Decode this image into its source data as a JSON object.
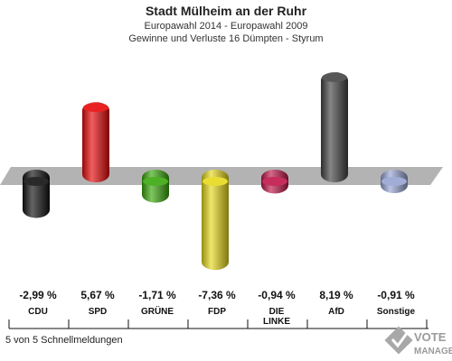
{
  "chart_data": {
    "type": "bar",
    "title": "Stadt Mülheim an der Ruhr",
    "subtitle_1": "Europawahl 2014 - Europawahl 2009",
    "subtitle_2": "Gewinne und Verluste 16 Dümpten - Styrum",
    "categories": [
      "CDU",
      "SPD",
      "GRÜNE",
      "FDP",
      "DIE LINKE",
      "AfD",
      "Sonstige"
    ],
    "category_lines": [
      [
        "CDU"
      ],
      [
        "SPD"
      ],
      [
        "GRÜNE"
      ],
      [
        "FDP"
      ],
      [
        "DIE",
        "LINKE"
      ],
      [
        "AfD"
      ],
      [
        "Sonstige"
      ]
    ],
    "values": [
      -2.99,
      5.67,
      -1.71,
      -7.36,
      -0.94,
      8.19,
      -0.91
    ],
    "value_labels": [
      "-2,99 %",
      "5,67 %",
      "-1,71 %",
      "-7,36 %",
      "-0,94 %",
      "8,19 %",
      "-0,91 %"
    ],
    "colors": [
      "#111111",
      "#e8090a",
      "#3aa70c",
      "#e7d91c",
      "#c0164a",
      "#444444",
      "#97a4d2"
    ],
    "ylim": [
      -8,
      9
    ],
    "xlabel": "",
    "ylabel": ""
  },
  "footer": "5 von 5 Schnellmeldungen",
  "logo": {
    "line1": "VOTE",
    "line2": "MANAGER",
    "icon": "ballot-check-icon"
  }
}
